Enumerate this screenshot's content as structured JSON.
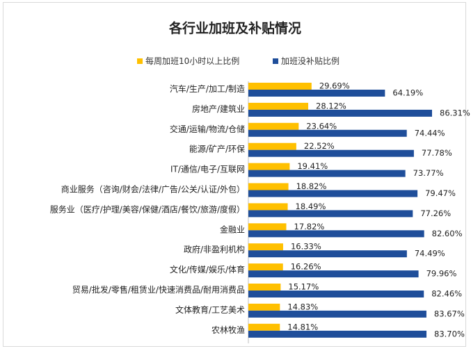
{
  "colors": {
    "series1": "#FFC000",
    "series2": "#1F4E9A"
  },
  "chart_data": {
    "type": "bar",
    "orientation": "horizontal",
    "title": "各行业加班及补贴情况",
    "legend": "top",
    "categories": [
      "汽车/生产/加工/制造",
      "房地产/建筑业",
      "交通/运输/物流/仓储",
      "能源/矿产/环保",
      "IT/通信/电子/互联网",
      "商业服务（咨询/财会/法律/广告/公关/认证/外包）",
      "服务业（医疗/护理/美容/保健/酒店/餐饮/旅游/度假）",
      "金融业",
      "政府/非盈利机构",
      "文化/传媒/娱乐/体育",
      "贸易/批发/零售/租赁业/快速消费品/耐用消费品",
      "文体教育/工艺美术",
      "农林牧渔"
    ],
    "series": [
      {
        "name": "每周加班10小时以上比例",
        "values": [
          29.69,
          28.12,
          23.64,
          22.52,
          19.41,
          18.82,
          18.49,
          17.82,
          16.33,
          16.26,
          15.17,
          14.83,
          14.81
        ],
        "labels": [
          "29.69%",
          "28.12%",
          "23.64%",
          "22.52%",
          "19.41%",
          "18.82%",
          "18.49%",
          "17.82%",
          "16.33%",
          "16.26%",
          "15.17%",
          "14.83%",
          "14.81%"
        ]
      },
      {
        "name": "加班没补贴比例",
        "values": [
          64.19,
          86.31,
          74.44,
          77.78,
          73.77,
          79.47,
          77.26,
          82.6,
          74.49,
          79.96,
          82.46,
          83.67,
          83.7
        ],
        "labels": [
          "64.19%",
          "86.31%",
          "74.44%",
          "77.78%",
          "73.77%",
          "79.47%",
          "77.26%",
          "82.60%",
          "74.49%",
          "79.96%",
          "82.46%",
          "83.67%",
          "83.70%"
        ]
      }
    ],
    "xlim": [
      0,
      100
    ],
    "grid": false
  }
}
